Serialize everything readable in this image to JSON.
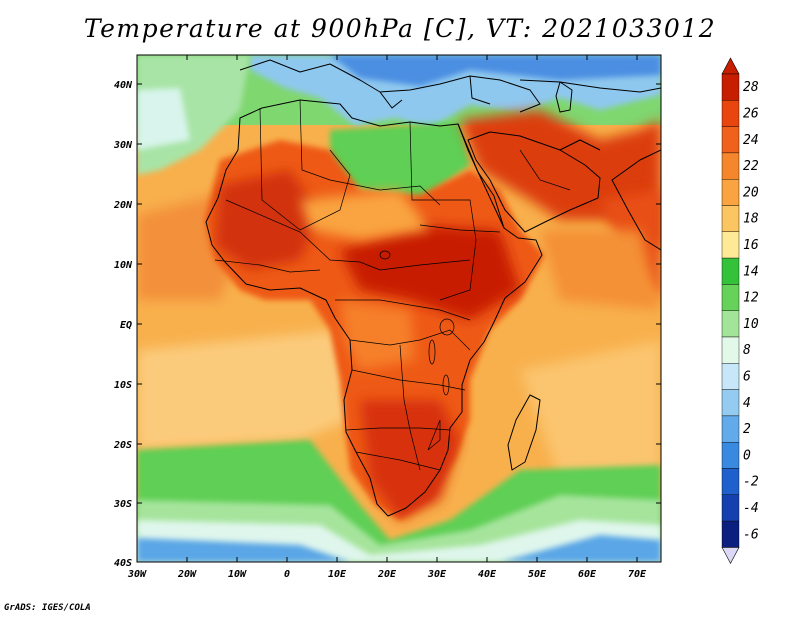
{
  "title": "Temperature at 900hPa [C], VT: 2021033012",
  "credit": "GrADS: IGES/COLA",
  "lat_labels": [
    "40N",
    "30N",
    "20N",
    "10N",
    "EQ",
    "10S",
    "20S",
    "30S",
    "40S"
  ],
  "lon_labels": [
    "30W",
    "20W",
    "10W",
    "0",
    "10E",
    "20E",
    "30E",
    "40E",
    "50E",
    "60E",
    "70E"
  ],
  "colorbar": {
    "levels": [
      "28",
      "26",
      "24",
      "22",
      "20",
      "18",
      "16",
      "14",
      "12",
      "10",
      "8",
      "6",
      "4",
      "2",
      "0",
      "-2",
      "-4",
      "-6"
    ],
    "colors": [
      "#c81e00",
      "#e8460e",
      "#f0621c",
      "#f6862c",
      "#f9a441",
      "#fbc661",
      "#fde996",
      "#34c23b",
      "#66d25a",
      "#a3e49a",
      "#e2f8e8",
      "#c7e6f7",
      "#93ccf0",
      "#62aae9",
      "#3a89e1",
      "#1f60cc",
      "#1440b0",
      "#0a1f80"
    ],
    "over_color": "#c81e00",
    "under_color": "#dcd9f8"
  },
  "colors": {
    "ocean_warm": "#f8b04c",
    "ocean_mid": "#fbc87a",
    "hot_core": "#c81e00",
    "cool_south": "#5fcf55",
    "cold_south": "#4a9ee6",
    "med": "#94ccf0"
  }
}
